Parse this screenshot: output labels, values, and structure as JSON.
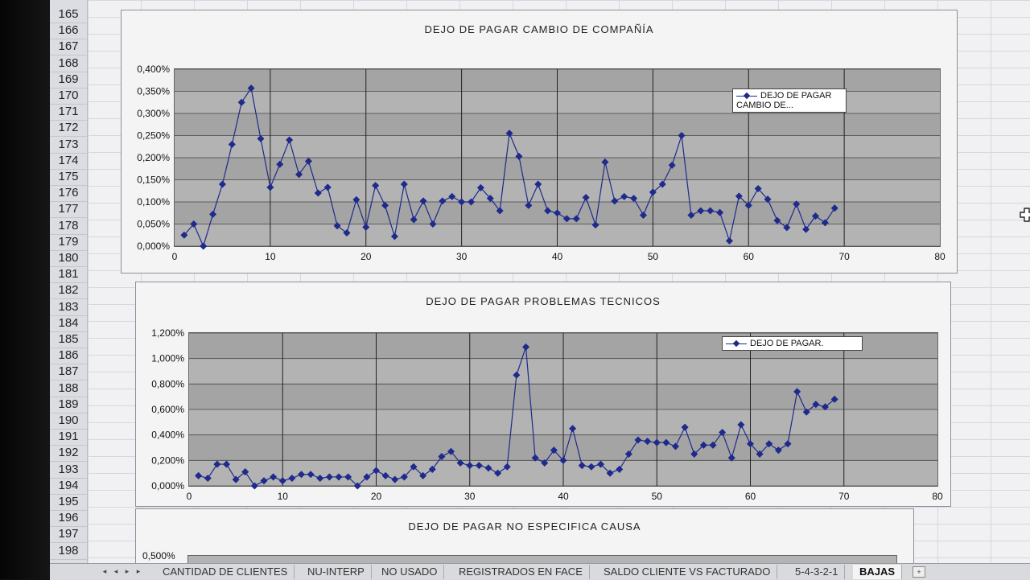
{
  "rows": [
    "165",
    "166",
    "167",
    "168",
    "169",
    "170",
    "171",
    "172",
    "173",
    "174",
    "175",
    "176",
    "177",
    "178",
    "179",
    "180",
    "181",
    "182",
    "183",
    "184",
    "185",
    "186",
    "187",
    "188",
    "189",
    "190",
    "191",
    "192",
    "193",
    "194",
    "195",
    "196",
    "197",
    "198"
  ],
  "sheet_tabs": [
    "CANTIDAD DE CLIENTES",
    "NU-INTERP",
    "NO USADO",
    "REGISTRADOS EN FACE",
    "SALDO CLIENTE VS FACTURADO",
    "5-4-3-2-1",
    "BAJAS"
  ],
  "active_tab": "BAJAS",
  "colors": {
    "series": "#1e2a8c",
    "plot_bg": "#b3b3b3",
    "grid": "#333333"
  },
  "chart_data": [
    {
      "type": "line",
      "title": "DEJO DE PAGAR CAMBIO DE COMPAÑÍA",
      "legend": "DEJO DE PAGAR CAMBIO DE...",
      "legend_position": "top-right",
      "grid": true,
      "xlim": [
        0,
        80
      ],
      "ylim": [
        0,
        0.4
      ],
      "x_ticks": [
        "0",
        "10",
        "20",
        "30",
        "40",
        "50",
        "60",
        "70",
        "80"
      ],
      "y_ticks": [
        "0,000%",
        "0,050%",
        "0,100%",
        "0,150%",
        "0,200%",
        "0,250%",
        "0,300%",
        "0,350%",
        "0,400%"
      ],
      "series": [
        {
          "values": [
            0.025,
            0.05,
            0.0,
            0.072,
            0.14,
            0.23,
            0.325,
            0.357,
            0.243,
            0.133,
            0.185,
            0.24,
            0.162,
            0.192,
            0.12,
            0.133,
            0.046,
            0.03,
            0.105,
            0.043,
            0.137,
            0.092,
            0.022,
            0.14,
            0.06,
            0.102,
            0.05,
            0.102,
            0.112,
            0.1,
            0.1,
            0.132,
            0.108,
            0.08,
            0.255,
            0.203,
            0.092,
            0.14,
            0.08,
            0.075,
            0.062,
            0.062,
            0.11,
            0.048,
            0.19,
            0.102,
            0.112,
            0.108,
            0.07,
            0.122,
            0.14,
            0.183,
            0.25,
            0.07,
            0.08,
            0.08,
            0.076,
            0.012,
            0.113,
            0.092,
            0.13,
            0.106,
            0.058,
            0.042,
            0.095,
            0.038,
            0.068,
            0.053,
            0.086
          ]
        }
      ]
    },
    {
      "type": "line",
      "title": "DEJO DE PAGAR PROBLEMAS TECNICOS",
      "legend": "DEJO DE PAGAR.",
      "legend_position": "top-right",
      "grid": true,
      "xlim": [
        0,
        80
      ],
      "ylim": [
        0,
        1.2
      ],
      "x_ticks": [
        "0",
        "10",
        "20",
        "30",
        "40",
        "50",
        "60",
        "70",
        "80"
      ],
      "y_ticks": [
        "0,000%",
        "0,200%",
        "0,400%",
        "0,600%",
        "0,800%",
        "1,000%",
        "1,200%"
      ],
      "series": [
        {
          "values": [
            0.08,
            0.06,
            0.17,
            0.17,
            0.05,
            0.11,
            0.0,
            0.04,
            0.07,
            0.04,
            0.06,
            0.09,
            0.09,
            0.06,
            0.07,
            0.07,
            0.07,
            0.0,
            0.07,
            0.12,
            0.08,
            0.05,
            0.07,
            0.15,
            0.08,
            0.13,
            0.23,
            0.27,
            0.18,
            0.16,
            0.16,
            0.14,
            0.1,
            0.15,
            0.87,
            1.09,
            0.22,
            0.18,
            0.28,
            0.2,
            0.45,
            0.16,
            0.15,
            0.17,
            0.1,
            0.13,
            0.25,
            0.36,
            0.35,
            0.34,
            0.34,
            0.31,
            0.46,
            0.25,
            0.32,
            0.32,
            0.42,
            0.22,
            0.48,
            0.33,
            0.25,
            0.33,
            0.28,
            0.33,
            0.74,
            0.58,
            0.64,
            0.62,
            0.68
          ]
        }
      ]
    },
    {
      "type": "line",
      "title": "DEJO DE PAGAR NO ESPECIFICA CAUSA",
      "y_ticks": [
        "0,500%"
      ]
    }
  ]
}
